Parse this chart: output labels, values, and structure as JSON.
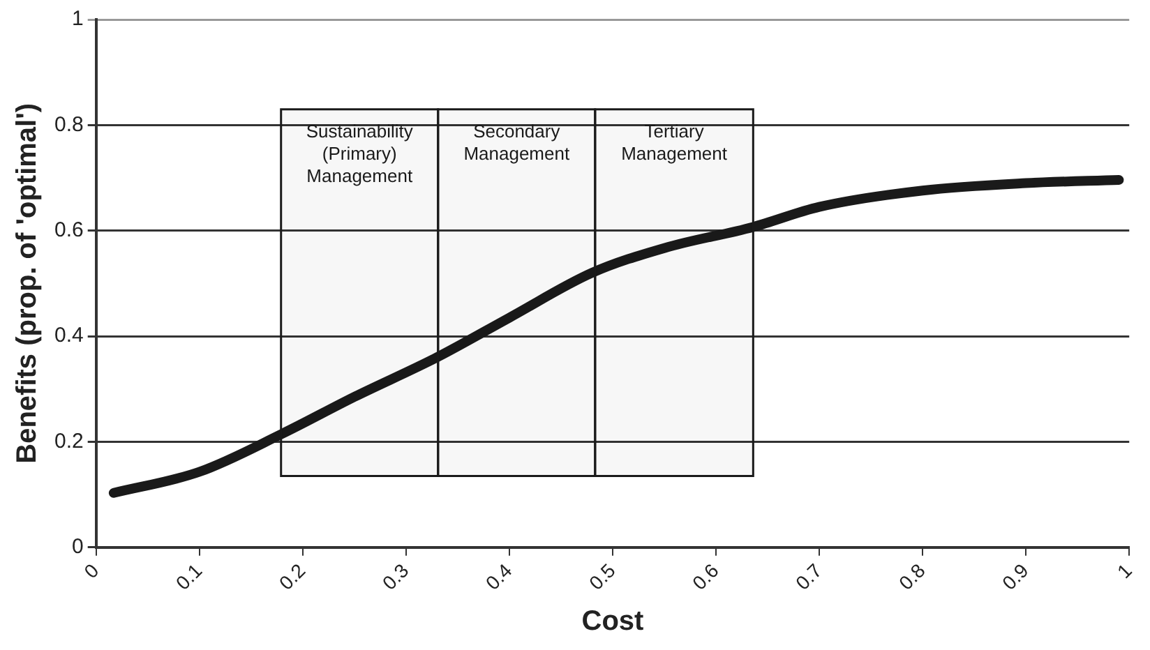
{
  "chart_data": {
    "type": "line",
    "xlabel": "Cost",
    "ylabel": "Benefits (prop. of 'optimal')",
    "series": [
      {
        "color": "#1a1a1a",
        "x": [
          0.017,
          0.1,
          0.18,
          0.25,
          0.33,
          0.4,
          0.48,
          0.55,
          0.636,
          0.7,
          0.8,
          0.9,
          0.99
        ],
        "values": [
          0.103,
          0.143,
          0.215,
          0.285,
          0.36,
          0.435,
          0.52,
          0.567,
          0.607,
          0.645,
          0.676,
          0.69,
          0.696
        ]
      }
    ],
    "bands": [
      {
        "axis": "x",
        "from": 0.179,
        "to": 0.331,
        "label": "Sustainability (Primary) Management"
      },
      {
        "axis": "x",
        "from": 0.331,
        "to": 0.483,
        "label": "Secondary Management"
      },
      {
        "axis": "x",
        "from": 0.483,
        "to": 0.636,
        "label": "Tertiary Management"
      }
    ],
    "xlim": [
      0,
      1
    ],
    "xticks": [
      0,
      0.1,
      0.2,
      0.3,
      0.4,
      0.5,
      0.6,
      0.7,
      0.8,
      0.9,
      1
    ],
    "ylim": [
      0,
      1
    ],
    "yticks": [
      0,
      0.2,
      0.4,
      0.6,
      0.8,
      1
    ],
    "grid": "y",
    "legend": false,
    "marker": "none",
    "line_style": "solid"
  }
}
